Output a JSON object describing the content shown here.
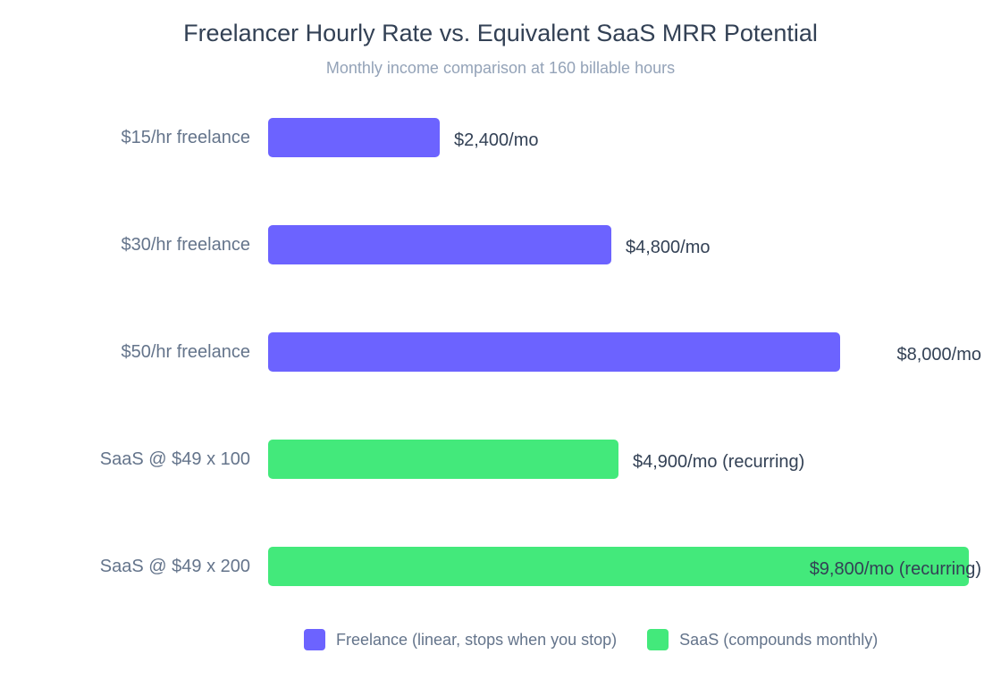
{
  "chart_data": {
    "type": "bar",
    "orientation": "horizontal",
    "title": "Freelancer Hourly Rate vs. Equivalent SaaS MRR Potential",
    "subtitle": "Monthly income comparison at 160 billable hours",
    "categories": [
      "$15/hr freelance",
      "$30/hr freelance",
      "$50/hr freelance",
      "SaaS @ $49 x 100",
      "SaaS @ $49 x 200"
    ],
    "values": [
      2400,
      4800,
      8000,
      4900,
      9800
    ],
    "value_labels": [
      "$2,400/mo",
      "$4,800/mo",
      "$8,000/mo",
      "$4,900/mo (recurring)",
      "$9,800/mo (recurring)"
    ],
    "groups": [
      "freelance",
      "freelance",
      "freelance",
      "saas",
      "saas"
    ],
    "xlim": [
      0,
      9800
    ],
    "grid": false,
    "legend": {
      "placement": "bottom",
      "entries": [
        {
          "key": "freelance",
          "label": "Freelance (linear, stops when you stop)",
          "color": "#6c63ff"
        },
        {
          "key": "saas",
          "label": "SaaS (compounds monthly)",
          "color": "#43e97b"
        }
      ]
    }
  }
}
